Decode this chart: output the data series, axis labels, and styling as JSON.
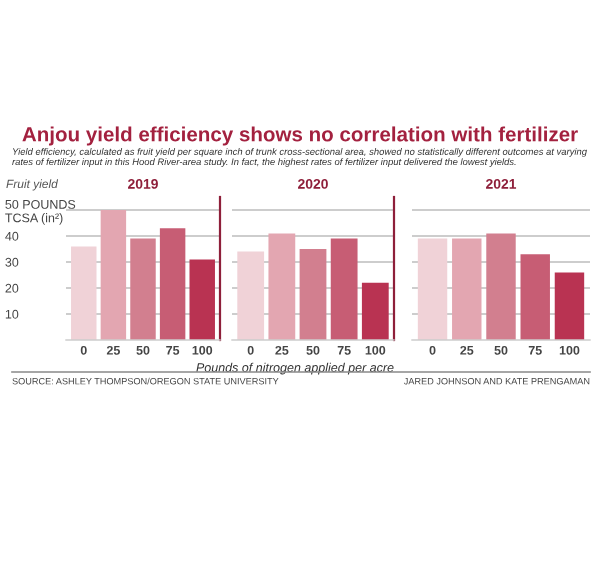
{
  "chart_data": [
    {
      "type": "bar",
      "title": "2019",
      "ylabel": "Fruit yield",
      "categories": [
        "0",
        "25",
        "50",
        "75",
        "100"
      ],
      "values": [
        36,
        50,
        39,
        43,
        31
      ],
      "colors": [
        "#f0d2d7",
        "#e3a6b1",
        "#d27f8f",
        "#c75d74",
        "#b93352"
      ],
      "ylim": [
        0,
        55
      ],
      "yticks": [
        10,
        20,
        30,
        40,
        {
          "value": 50,
          "label": "50 POUNDS\nTCSA (in²)"
        }
      ],
      "grid": "y",
      "annotations": [
        "Anjou yield efficiency shows no correlation with fertilizer",
        "Yield efficiency, calculated as fruit yield per square inch of trunk cross-sectional area, showed no statistically different outcomes at varying rates of fertilizer input in this Hood River-area study. In fact, the highest rates of fertilizer input delivered the lowest yields.",
        "SOURCE: ASHLEY THOMPSON/OREGON STATE UNIVERSITY"
      ]
    },
    {
      "type": "bar",
      "title": "2020",
      "xlabel": "Pounds of nitrogen applied per acre",
      "categories": [
        "0",
        "25",
        "50",
        "75",
        "100"
      ],
      "values": [
        34,
        41,
        35,
        39,
        22
      ],
      "colors": [
        "#f0d2d7",
        "#e3a6b1",
        "#d27f8f",
        "#c75d74",
        "#b93352"
      ],
      "ylim": [
        0,
        55
      ],
      "grid": "y",
      "tick_labels": "x"
    },
    {
      "type": "bar",
      "title": "2021",
      "categories": [
        "0",
        "25",
        "50",
        "75",
        "100"
      ],
      "values": [
        39,
        39,
        41,
        33,
        26
      ],
      "colors": [
        "#f0d2d7",
        "#e3a6b1",
        "#d27f8f",
        "#c75d74",
        "#b93352"
      ],
      "ylim": [
        0,
        55
      ],
      "grid": "y",
      "tick_labels": "x",
      "annotations": [
        "JARED JOHNSON AND KATE PRENGAMAN"
      ]
    }
  ]
}
